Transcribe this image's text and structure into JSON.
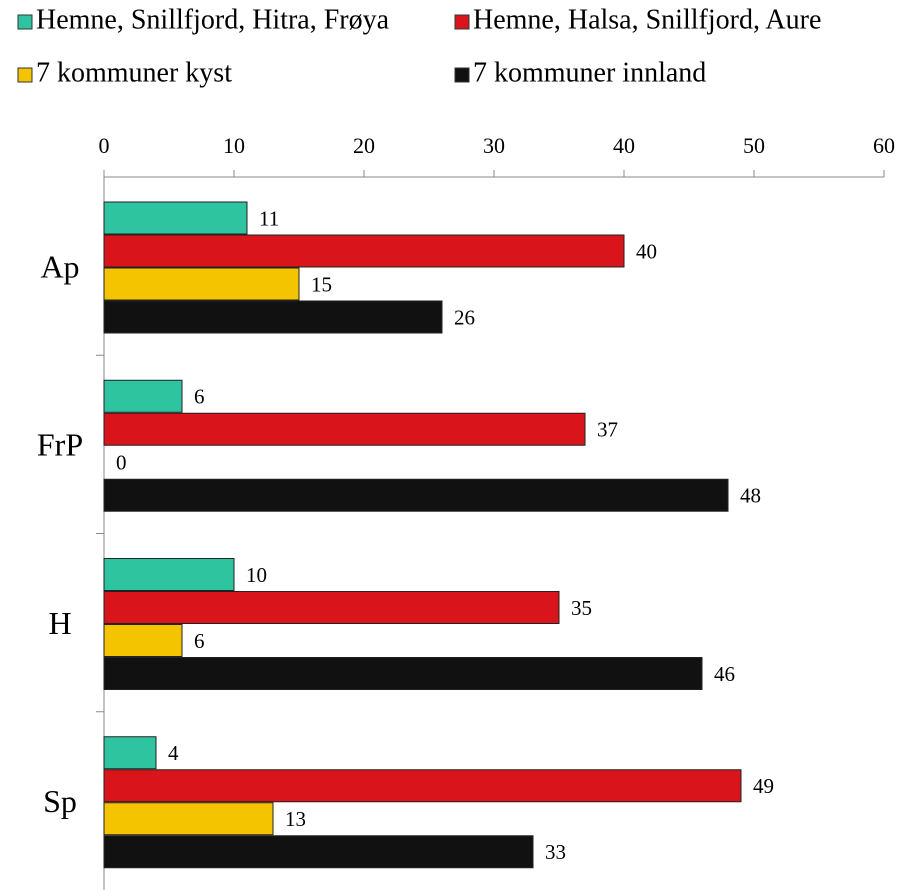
{
  "chart_data": {
    "type": "bar",
    "orientation": "horizontal",
    "categories": [
      "Ap",
      "FrP",
      "H",
      "Sp"
    ],
    "series": [
      {
        "name": "Hemne, Snillfjord, Hitra, Frøya",
        "color": "#2ec4a0",
        "values": [
          11,
          6,
          10,
          4
        ]
      },
      {
        "name": "Hemne, Halsa, Snillfjord, Aure",
        "color": "#d9141b",
        "values": [
          40,
          37,
          35,
          49
        ]
      },
      {
        "name": "7 kommuner kyst",
        "color": "#f5c400",
        "values": [
          15,
          0,
          6,
          13
        ]
      },
      {
        "name": "7 kommuner innland",
        "color": "#111111",
        "values": [
          26,
          48,
          46,
          33
        ]
      }
    ],
    "xlim": [
      0,
      60
    ],
    "xticks": [
      0,
      10,
      20,
      30,
      40,
      50,
      60
    ],
    "legend": "top"
  }
}
